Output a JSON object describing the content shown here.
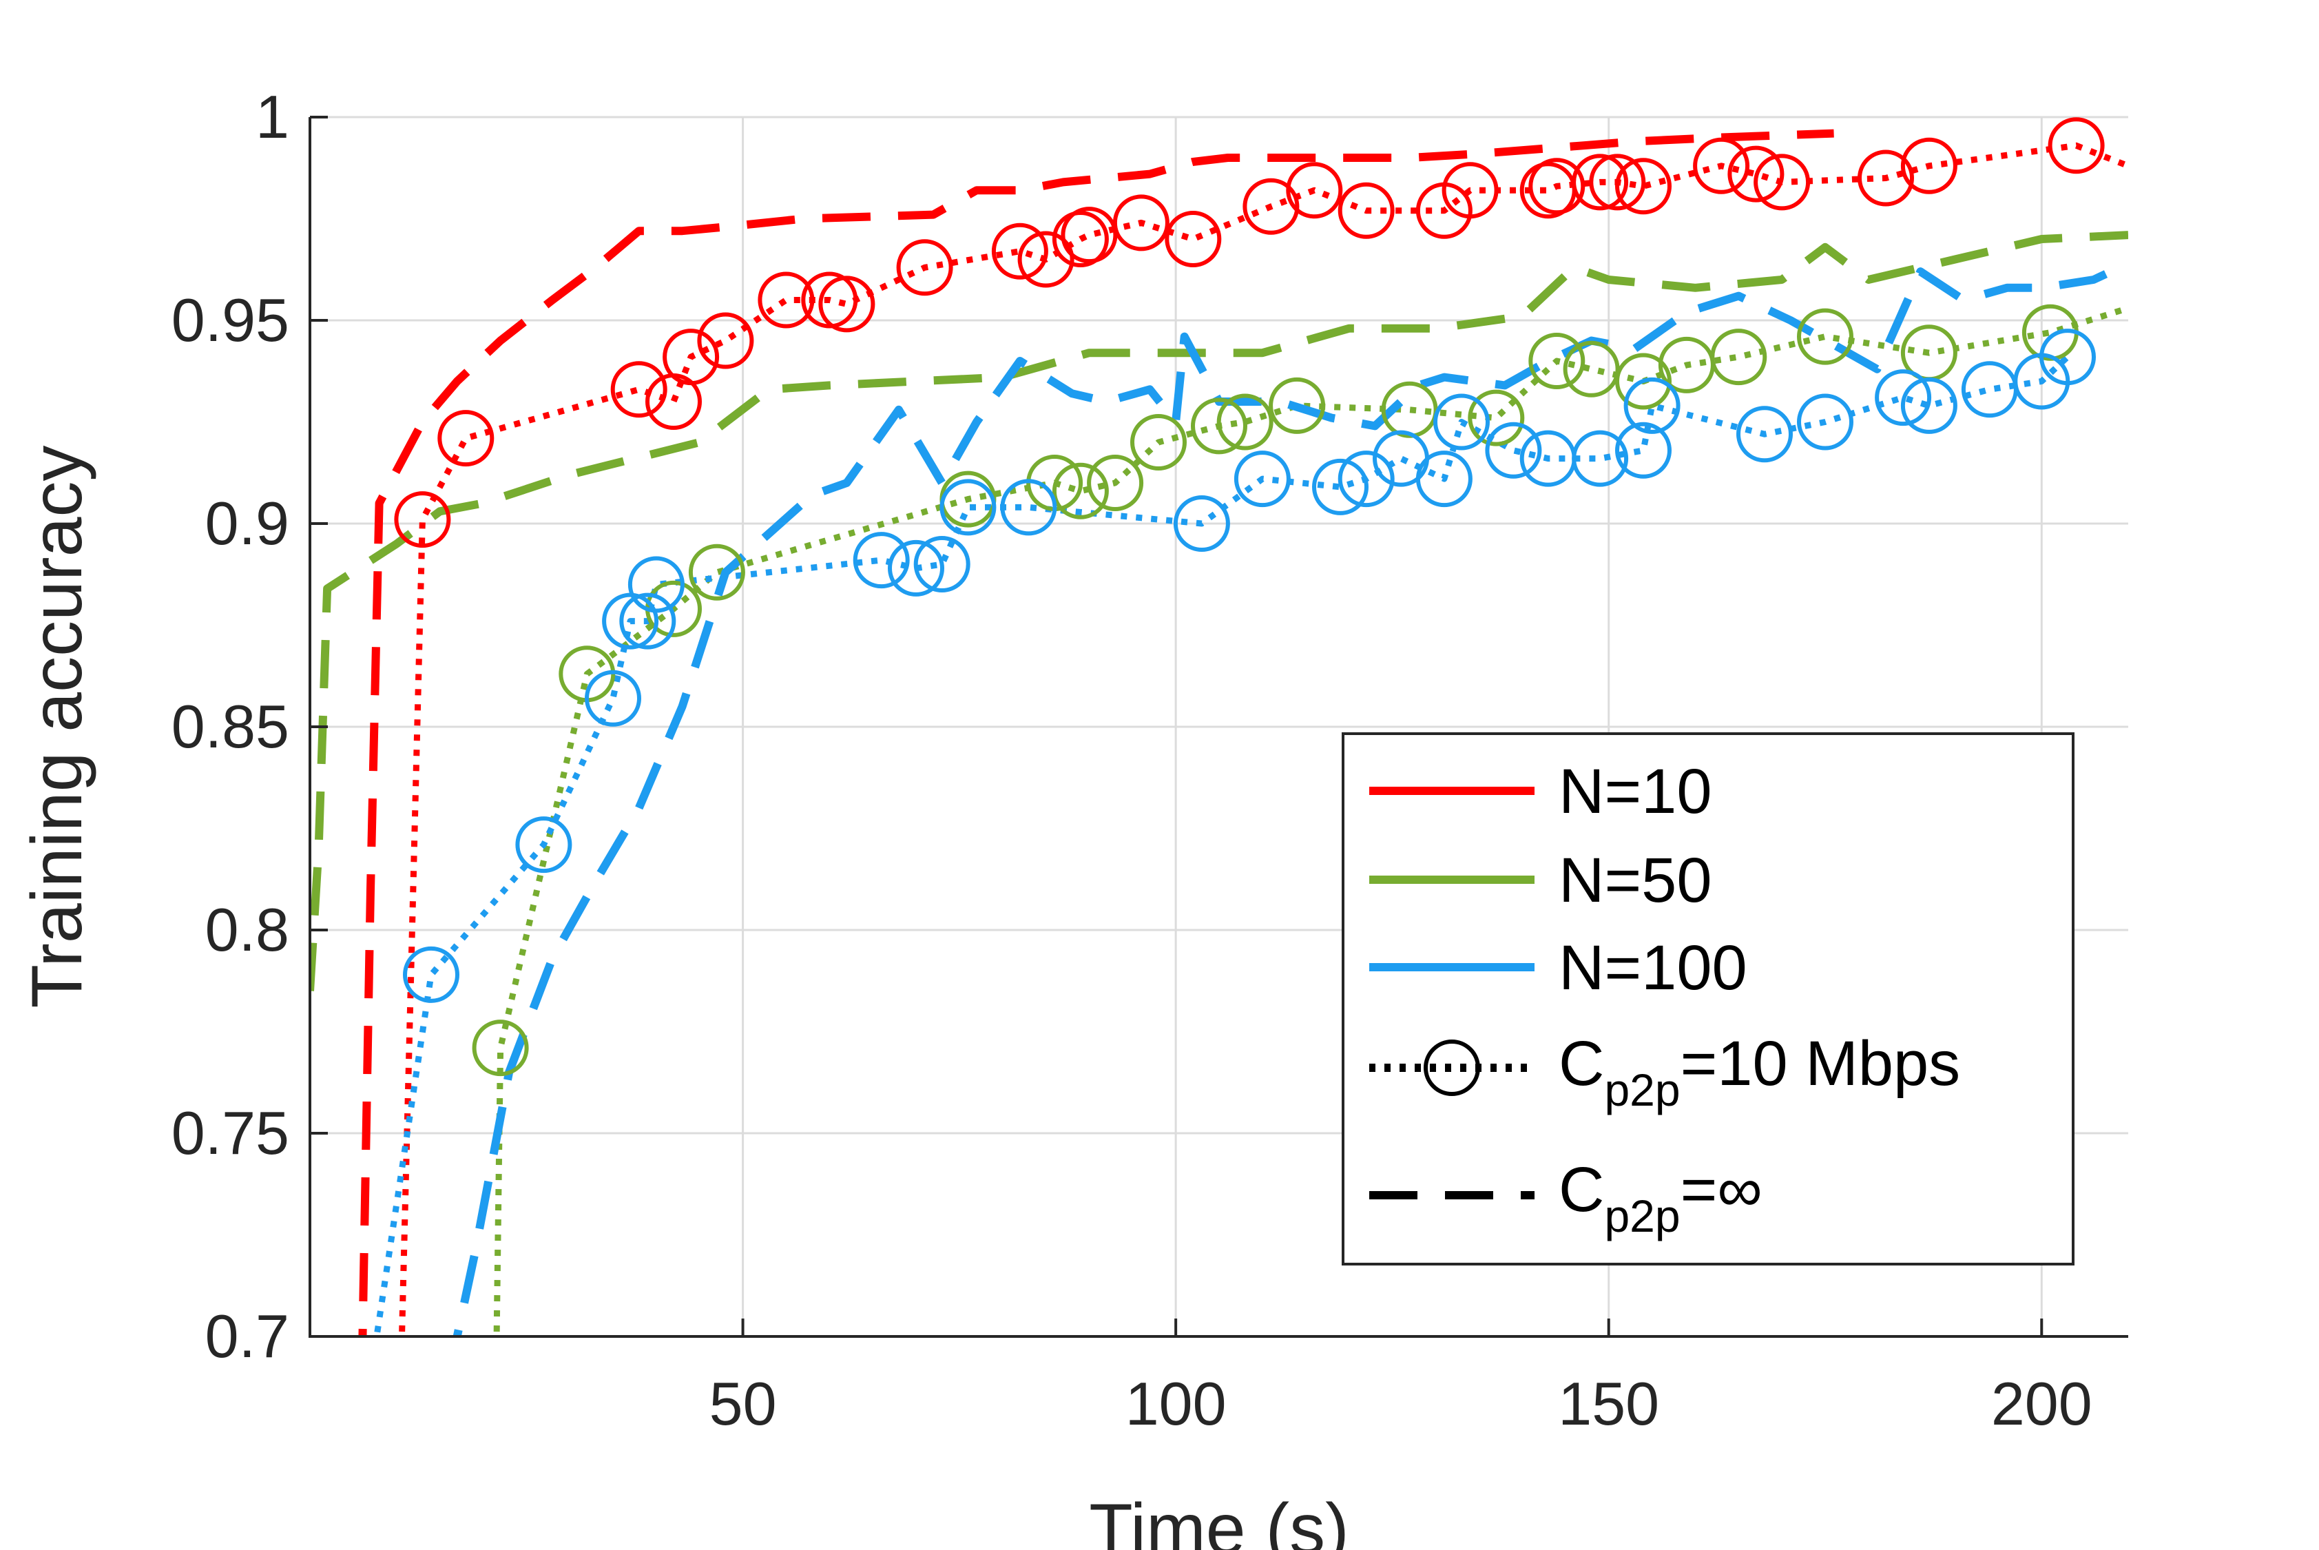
{
  "chart_data": {
    "type": "line",
    "title": "",
    "xlabel": "Time (s)",
    "ylabel": "Training accuracy",
    "xlim": [
      0,
      210
    ],
    "ylim": [
      0.7,
      1.0
    ],
    "xticks": [
      50,
      100,
      150,
      200
    ],
    "yticks": [
      0.7,
      0.75,
      0.8,
      0.85,
      0.9,
      0.95,
      1.0
    ],
    "xtick_labels": [
      "50",
      "100",
      "150",
      "200"
    ],
    "ytick_labels": [
      "0.7",
      "0.75",
      "0.8",
      "0.85",
      "0.9",
      "0.95",
      "1"
    ],
    "grid": true,
    "legend_position": "bottom-right",
    "legend": {
      "entries": [
        {
          "label": "N=10",
          "color": "#ff0000",
          "style": "solid"
        },
        {
          "label": "N=50",
          "color": "#77ac30",
          "style": "solid"
        },
        {
          "label": "N=100",
          "color": "#1e9cf0",
          "style": "solid"
        },
        {
          "label_main": "C",
          "label_sub": "p2p",
          "label_rest": "=10 Mbps",
          "color": "#000000",
          "style": "dotted-circle"
        },
        {
          "label_main": "C",
          "label_sub": "p2p",
          "label_rest": "=∞",
          "color": "#000000",
          "style": "dashed"
        }
      ]
    },
    "series": [
      {
        "group": "N=10",
        "link": "C_p2p=10 Mbps",
        "color": "#ff0000",
        "style": "dotted",
        "marker": "circle",
        "x": [
          10.5,
          13,
          18,
          38,
          42,
          44,
          48,
          55,
          60,
          62,
          71,
          82,
          85,
          89,
          90,
          96,
          102,
          111,
          116,
          122,
          131,
          134,
          143,
          144,
          149,
          151,
          154,
          163,
          167,
          170,
          182,
          187,
          204,
          210
        ],
        "y": [
          0.69,
          0.901,
          0.921,
          0.933,
          0.93,
          0.941,
          0.945,
          0.955,
          0.955,
          0.954,
          0.963,
          0.967,
          0.965,
          0.97,
          0.971,
          0.974,
          0.97,
          0.978,
          0.982,
          0.977,
          0.977,
          0.982,
          0.982,
          0.983,
          0.984,
          0.984,
          0.983,
          0.988,
          0.986,
          0.984,
          0.985,
          0.988,
          0.993,
          0.988
        ]
      },
      {
        "group": "N=10",
        "link": "C_p2p=∞",
        "color": "#ff0000",
        "style": "dashed",
        "x": [
          6,
          7,
          8,
          13,
          17,
          22,
          28,
          33,
          38,
          43,
          48,
          57,
          72,
          77,
          82,
          87,
          92,
          97,
          102,
          106,
          119,
          127,
          135,
          147,
          153,
          163,
          176
        ],
        "y": [
          0.69,
          0.81,
          0.905,
          0.925,
          0.935,
          0.945,
          0.955,
          0.963,
          0.972,
          0.972,
          0.973,
          0.975,
          0.976,
          0.982,
          0.982,
          0.984,
          0.985,
          0.986,
          0.989,
          0.99,
          0.99,
          0.99,
          0.991,
          0.993,
          0.994,
          0.995,
          0.996
        ]
      },
      {
        "group": "N=50",
        "link": "C_p2p=10 Mbps",
        "color": "#77ac30",
        "style": "dotted",
        "marker": "circle",
        "x": [
          21.5,
          22,
          32,
          42,
          47,
          76,
          86,
          89,
          93,
          98,
          105,
          108,
          114,
          127,
          137,
          144,
          148,
          154,
          159,
          165,
          175,
          187,
          201,
          210
        ],
        "y": [
          0.69,
          0.771,
          0.863,
          0.879,
          0.888,
          0.906,
          0.91,
          0.908,
          0.91,
          0.92,
          0.924,
          0.925,
          0.929,
          0.928,
          0.926,
          0.94,
          0.938,
          0.935,
          0.939,
          0.941,
          0.946,
          0.942,
          0.947,
          0.953
        ]
      },
      {
        "group": "N=50",
        "link": "C_p2p=∞",
        "color": "#77ac30",
        "style": "dashed",
        "x": [
          0,
          1,
          2,
          10,
          15,
          20,
          30,
          45,
          53,
          60,
          70,
          80,
          90,
          100,
          110,
          120,
          130,
          140,
          146,
          150,
          160,
          170,
          175,
          180,
          190,
          200,
          210
        ],
        "y": [
          0.785,
          0.82,
          0.884,
          0.895,
          0.903,
          0.905,
          0.912,
          0.92,
          0.933,
          0.934,
          0.935,
          0.936,
          0.942,
          0.942,
          0.942,
          0.948,
          0.948,
          0.951,
          0.963,
          0.96,
          0.958,
          0.96,
          0.968,
          0.96,
          0.965,
          0.97,
          0.971
        ]
      },
      {
        "group": "N=100",
        "link": "C_p2p=10 Mbps",
        "color": "#1e9cf0",
        "style": "dotted",
        "marker": "circle",
        "x": [
          7,
          14,
          27,
          35,
          37,
          39,
          40,
          66,
          70,
          73,
          76,
          83,
          103,
          110,
          119,
          122,
          126,
          131,
          133,
          139,
          143,
          149,
          154,
          155,
          168,
          175,
          184,
          187,
          194,
          200,
          203
        ],
        "y": [
          0.69,
          0.789,
          0.821,
          0.857,
          0.876,
          0.876,
          0.885,
          0.891,
          0.889,
          0.89,
          0.904,
          0.904,
          0.9,
          0.911,
          0.909,
          0.911,
          0.916,
          0.911,
          0.925,
          0.918,
          0.916,
          0.916,
          0.918,
          0.929,
          0.922,
          0.925,
          0.931,
          0.929,
          0.933,
          0.935,
          0.941
        ]
      },
      {
        "group": "N=100",
        "link": "C_p2p=∞",
        "color": "#1e9cf0",
        "style": "dashed",
        "x": [
          16,
          19,
          23,
          28,
          33,
          38,
          43,
          48,
          58,
          62,
          68,
          73,
          77,
          82,
          88,
          92,
          97,
          100,
          101,
          105,
          112,
          118,
          123,
          128,
          131,
          138,
          143,
          148,
          153,
          159,
          165,
          171,
          176,
          181,
          186,
          191,
          196,
          200,
          206,
          210
        ],
        "y": [
          0.69,
          0.72,
          0.765,
          0.793,
          0.812,
          0.83,
          0.855,
          0.888,
          0.907,
          0.91,
          0.928,
          0.91,
          0.925,
          0.94,
          0.932,
          0.93,
          0.933,
          0.925,
          0.946,
          0.93,
          0.93,
          0.926,
          0.924,
          0.934,
          0.936,
          0.934,
          0.94,
          0.945,
          0.943,
          0.952,
          0.956,
          0.95,
          0.944,
          0.938,
          0.962,
          0.955,
          0.958,
          0.958,
          0.96,
          0.964
        ]
      }
    ]
  }
}
